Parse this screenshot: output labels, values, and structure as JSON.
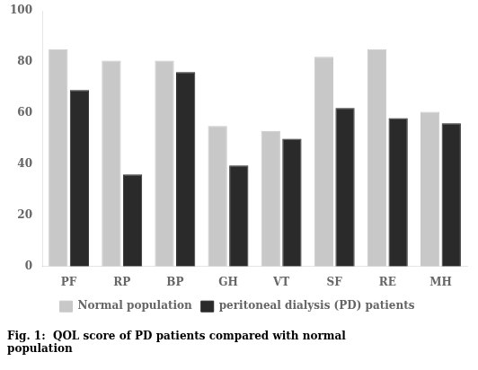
{
  "chart_data": {
    "type": "bar",
    "title": [
      "Fig. 1:  QOL score of PD patients compared with normal",
      "population"
    ],
    "categories": [
      "PF",
      "RP",
      "BP",
      "GH",
      "VT",
      "SF",
      "RE",
      "MH"
    ],
    "series": [
      {
        "name": "Normal population",
        "color": "#c8c8c8",
        "values": [
          85,
          80.5,
          80.5,
          55,
          53,
          82,
          85,
          60.5
        ]
      },
      {
        "name": "peritoneal dialysis (PD) patients",
        "color": "#2a2a2a",
        "values": [
          69,
          36,
          76,
          39.5,
          50,
          62,
          58,
          56
        ]
      }
    ],
    "ylim": [
      0,
      100
    ],
    "yticks": [
      0,
      20,
      40,
      60,
      80,
      100
    ],
    "grid": false,
    "legend": "bottom"
  }
}
